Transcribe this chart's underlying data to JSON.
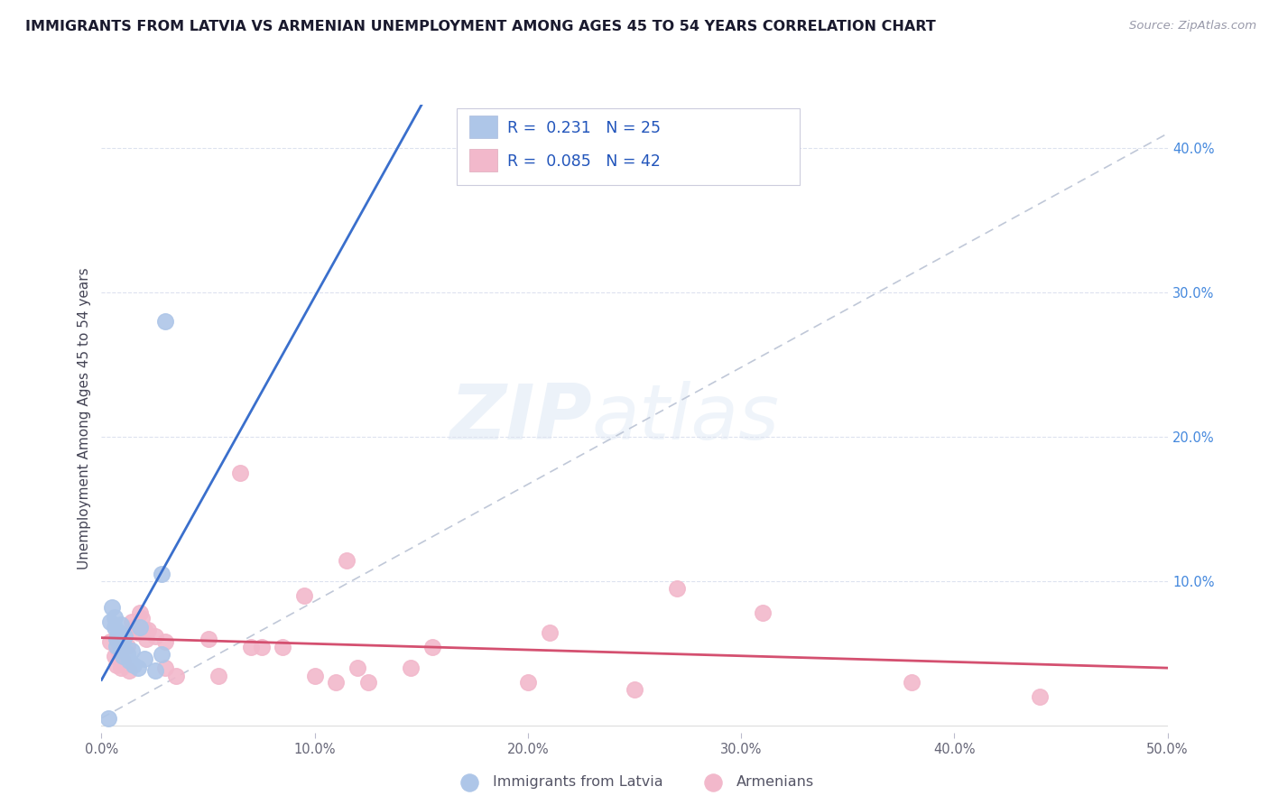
{
  "title": "IMMIGRANTS FROM LATVIA VS ARMENIAN UNEMPLOYMENT AMONG AGES 45 TO 54 YEARS CORRELATION CHART",
  "source": "Source: ZipAtlas.com",
  "ylabel": "Unemployment Among Ages 45 to 54 years",
  "xlim": [
    0.0,
    0.5
  ],
  "ylim": [
    -0.005,
    0.43
  ],
  "xticks": [
    0.0,
    0.1,
    0.2,
    0.3,
    0.4,
    0.5
  ],
  "xtick_labels": [
    "0.0%",
    "10.0%",
    "20.0%",
    "30.0%",
    "40.0%",
    "50.0%"
  ],
  "yticks_right": [
    0.1,
    0.2,
    0.3,
    0.4
  ],
  "ytick_labels_right": [
    "10.0%",
    "20.0%",
    "30.0%",
    "40.0%"
  ],
  "legend_R1": "0.231",
  "legend_N1": "25",
  "legend_R2": "0.085",
  "legend_N2": "42",
  "blue_color": "#aec6e8",
  "pink_color": "#f2b8cb",
  "line_blue": "#3a6fcc",
  "line_pink": "#d45070",
  "trendline_dashed_color": "#c0c8d8",
  "blue_scatter_x": [
    0.003,
    0.004,
    0.005,
    0.006,
    0.006,
    0.007,
    0.007,
    0.008,
    0.008,
    0.009,
    0.009,
    0.01,
    0.01,
    0.011,
    0.012,
    0.013,
    0.014,
    0.015,
    0.017,
    0.018,
    0.02,
    0.025,
    0.028,
    0.028,
    0.03
  ],
  "blue_scatter_y": [
    0.005,
    0.072,
    0.082,
    0.075,
    0.068,
    0.06,
    0.055,
    0.065,
    0.058,
    0.07,
    0.052,
    0.058,
    0.048,
    0.062,
    0.05,
    0.045,
    0.052,
    0.042,
    0.04,
    0.068,
    0.046,
    0.038,
    0.049,
    0.105,
    0.28
  ],
  "pink_scatter_x": [
    0.004,
    0.006,
    0.007,
    0.008,
    0.009,
    0.01,
    0.012,
    0.013,
    0.014,
    0.015,
    0.016,
    0.017,
    0.018,
    0.019,
    0.02,
    0.021,
    0.022,
    0.025,
    0.03,
    0.03,
    0.035,
    0.05,
    0.055,
    0.065,
    0.07,
    0.075,
    0.085,
    0.095,
    0.1,
    0.11,
    0.115,
    0.12,
    0.125,
    0.145,
    0.155,
    0.2,
    0.21,
    0.25,
    0.27,
    0.31,
    0.38,
    0.44
  ],
  "pink_scatter_y": [
    0.058,
    0.048,
    0.042,
    0.052,
    0.04,
    0.045,
    0.055,
    0.038,
    0.072,
    0.068,
    0.066,
    0.064,
    0.078,
    0.074,
    0.066,
    0.06,
    0.066,
    0.062,
    0.058,
    0.04,
    0.034,
    0.06,
    0.034,
    0.175,
    0.054,
    0.054,
    0.054,
    0.09,
    0.034,
    0.03,
    0.114,
    0.04,
    0.03,
    0.04,
    0.054,
    0.03,
    0.064,
    0.025,
    0.095,
    0.078,
    0.03,
    0.02
  ],
  "background_color": "#ffffff",
  "grid_color": "#dde2ef"
}
